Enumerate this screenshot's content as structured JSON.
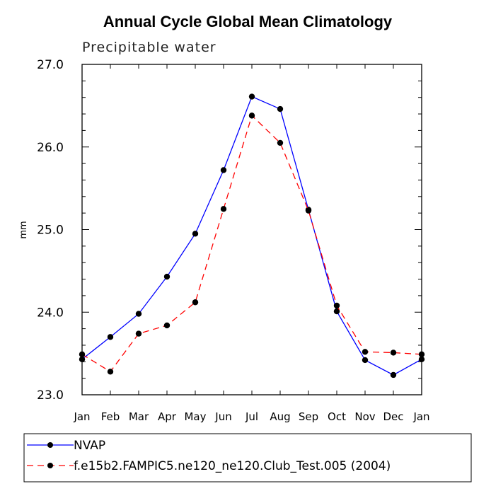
{
  "chart_data": {
    "type": "line",
    "title": "Annual Cycle Global Mean Climatology",
    "subtitle": "Precipitable water",
    "xlabel": "",
    "ylabel": "mm",
    "categories": [
      "Jan",
      "Feb",
      "Mar",
      "Apr",
      "May",
      "Jun",
      "Jul",
      "Aug",
      "Sep",
      "Oct",
      "Nov",
      "Dec",
      "Jan"
    ],
    "ylim": [
      23.0,
      27.0
    ],
    "yticks": [
      "23.0",
      "24.0",
      "25.0",
      "26.0",
      "27.0"
    ],
    "grid": false,
    "legend_position": "bottom",
    "series": [
      {
        "name": "NVAP",
        "color": "#0000ff",
        "dash": "solid",
        "marker": "filled-circle",
        "values": [
          23.43,
          23.7,
          23.98,
          24.43,
          24.95,
          25.72,
          26.61,
          26.46,
          25.24,
          24.01,
          23.42,
          23.24,
          23.43
        ]
      },
      {
        "name": "f.e15b2.FAMPIC5.ne120_ne120.Club_Test.005 (2004)",
        "color": "#ff0000",
        "dash": "dashed",
        "marker": "filled-circle",
        "values": [
          23.49,
          23.28,
          23.74,
          23.84,
          24.12,
          25.25,
          26.38,
          26.05,
          25.23,
          24.08,
          23.52,
          23.51,
          23.49
        ]
      }
    ]
  }
}
